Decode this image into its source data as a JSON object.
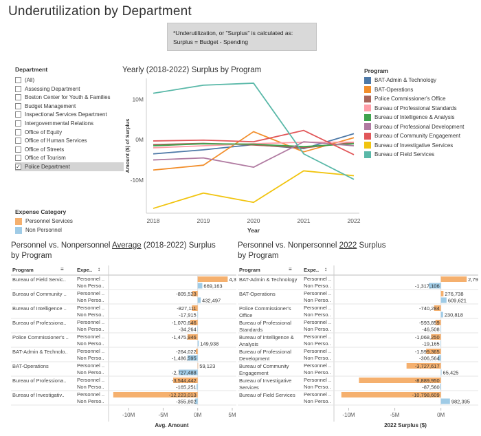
{
  "title": "Underutilization by Department",
  "note": {
    "line1": "*Underutilization, or \"Surplus\" is calculated as:",
    "line2": "Surplus = Budget - Spending"
  },
  "filter": {
    "header": "Department",
    "items": [
      {
        "label": "(All)",
        "checked": false
      },
      {
        "label": "Assessing Department",
        "checked": false
      },
      {
        "label": "Boston Center for Youth & Families",
        "checked": false
      },
      {
        "label": "Budget Management",
        "checked": false
      },
      {
        "label": "Inspectional Services Department",
        "checked": false
      },
      {
        "label": "Intergovernmental Relations",
        "checked": false
      },
      {
        "label": "Office of Equity",
        "checked": false
      },
      {
        "label": "Office of Human Services",
        "checked": false
      },
      {
        "label": "Office of Streets",
        "checked": false
      },
      {
        "label": "Office of Tourism",
        "checked": false
      },
      {
        "label": "Police Department",
        "checked": true
      }
    ]
  },
  "expense_legend": {
    "header": "Expense Category",
    "items": [
      {
        "label": "Personnel Services",
        "color": "#f5b06e"
      },
      {
        "label": "Non Personnel",
        "color": "#9fcbe6"
      }
    ]
  },
  "program_legend": {
    "header": "Program",
    "items": [
      {
        "label": "BAT-Admin & Technology",
        "color": "#4e79a7"
      },
      {
        "label": "BAT-Operations",
        "color": "#f28e2b"
      },
      {
        "label": "Police Commissioner's Office",
        "color": "#a8645a"
      },
      {
        "label": "Bureau of Professional Standards",
        "color": "#ff9da7"
      },
      {
        "label": "Bureau of Intelligence & Analysis",
        "color": "#3fa34d"
      },
      {
        "label": "Bureau of Professional Development",
        "color": "#b07aa1"
      },
      {
        "label": "Bureau of Community Engagement",
        "color": "#e15759"
      },
      {
        "label": "Bureau of Investigative Services",
        "color": "#f1c40f"
      },
      {
        "label": "Bureau of Field Services",
        "color": "#59b8a8"
      }
    ]
  },
  "line_chart": {
    "title": "Yearly (2018-2022) Surplus by Program",
    "ylabel": "Amount ($) of Surplus",
    "xlabel": "Year"
  },
  "avg_chart": {
    "title_pre": "Personnel vs. Nonpersonnel ",
    "title_underline": "Average",
    "title_post": " (2018-2022) Surplus",
    "title_line2": "by Program",
    "col_program": "Program",
    "col_expense": "Expe..",
    "xlabel": "Avg. Amount"
  },
  "y2022_chart": {
    "title_pre": "Personnel vs. Nonpersonnel ",
    "title_underline": "2022",
    "title_post": " Surplus",
    "title_line2": "by Program",
    "col_program": "Program",
    "col_expense": "Expe..",
    "xlabel": "2022 Surplus ($)"
  },
  "chart_data": [
    {
      "type": "line",
      "title": "Yearly (2018-2022) Surplus by Program",
      "xlabel": "Year",
      "ylabel": "Amount ($) of Surplus",
      "x": [
        2018,
        2019,
        2020,
        2021,
        2022
      ],
      "ylim": [
        -17500000,
        14500000
      ],
      "yticks": [
        {
          "v": 10000000,
          "label": "10M"
        },
        {
          "v": 0,
          "label": "0M"
        },
        {
          "v": -10000000,
          "label": "-10M"
        }
      ],
      "grid": false,
      "legend": "right",
      "series": [
        {
          "name": "BAT-Admin & Technology",
          "color": "#4e79a7",
          "values": [
            -3500000,
            -2500000,
            -1200000,
            -2200000,
            1500000
          ]
        },
        {
          "name": "BAT-Operations",
          "color": "#f28e2b",
          "values": [
            -7500000,
            -6300000,
            2000000,
            -3000000,
            500000
          ]
        },
        {
          "name": "Police Commissioner's Office",
          "color": "#a8645a",
          "values": [
            -1200000,
            -900000,
            -1300000,
            -2000000,
            -700000
          ]
        },
        {
          "name": "Bureau of Professional Standards",
          "color": "#ff9da7",
          "values": [
            -2000000,
            -1500000,
            -1000000,
            -600000,
            -600000
          ]
        },
        {
          "name": "Bureau of Intelligence & Analysis",
          "color": "#3fa34d",
          "values": [
            -1500000,
            -1000000,
            -1100000,
            -1700000,
            -1000000
          ]
        },
        {
          "name": "Bureau of Professional Development",
          "color": "#b07aa1",
          "values": [
            -5000000,
            -4500000,
            -6800000,
            -500000,
            -1500000
          ]
        },
        {
          "name": "Bureau of Community Engagement",
          "color": "#e15759",
          "values": [
            -300000,
            -100000,
            -500000,
            2300000,
            -3700000
          ]
        },
        {
          "name": "Bureau of Investigative Services",
          "color": "#f1c40f",
          "values": [
            -17000000,
            -13200000,
            -15500000,
            -7700000,
            -8900000
          ]
        },
        {
          "name": "Bureau of Field Services",
          "color": "#59b8a8",
          "values": [
            11500000,
            13500000,
            14000000,
            -3500000,
            -9800000
          ]
        }
      ]
    },
    {
      "type": "bar",
      "title": "Personnel vs. Nonpersonnel Average (2018-2022) Surplus by Program",
      "xlabel": "Avg. Amount",
      "xlim": [
        -12900000,
        5400000
      ],
      "xticks": [
        {
          "v": -10000000,
          "label": "-10M"
        },
        {
          "v": -5000000,
          "label": "-5M"
        },
        {
          "v": 0,
          "label": "0M"
        },
        {
          "v": 5000000,
          "label": "5M"
        }
      ],
      "rows": [
        {
          "program": "Bureau of Field Servic..",
          "personnel": 4342652,
          "personnel_label": "4,342,652",
          "nonpersonnel": 669163,
          "nonpersonnel_label": "669,163"
        },
        {
          "program": "Bureau of Community ..",
          "personnel": -805523,
          "personnel_label": "-805,523",
          "nonpersonnel": 432497,
          "nonpersonnel_label": "432,497"
        },
        {
          "program": "Bureau of Intelligence ..",
          "personnel": -827111,
          "personnel_label": "-827,111",
          "nonpersonnel": -17915,
          "nonpersonnel_label": "-17,915"
        },
        {
          "program": "Bureau of Professiona..",
          "personnel": -1070646,
          "personnel_label": "-1,070,646",
          "nonpersonnel": -34264,
          "nonpersonnel_label": "-34,264"
        },
        {
          "program": "Police Commissioner's ..",
          "personnel": -1475946,
          "personnel_label": "-1,475,946",
          "nonpersonnel": 149938,
          "nonpersonnel_label": "149,938"
        },
        {
          "program": "BAT-Admin & Technolo..",
          "personnel": -264022,
          "personnel_label": "-264,022",
          "nonpersonnel": -1486595,
          "nonpersonnel_label": "-1,486,595"
        },
        {
          "program": "BAT-Operations",
          "personnel": 59123,
          "personnel_label": "59,123",
          "nonpersonnel": -2727488,
          "nonpersonnel_label": "-2,727,488"
        },
        {
          "program": "Bureau of Professiona..",
          "personnel": -3544442,
          "personnel_label": "-3,544,442",
          "nonpersonnel": -165251,
          "nonpersonnel_label": "-165,251"
        },
        {
          "program": "Bureau of Investigativ..",
          "personnel": -12223013,
          "personnel_label": "-12,223,013",
          "nonpersonnel": -355802,
          "nonpersonnel_label": "-355,802"
        }
      ],
      "sub_labels": [
        "Personnel ..",
        "Non Perso.."
      ]
    },
    {
      "type": "bar",
      "title": "Personnel vs. Nonpersonnel 2022 Surplus by Program",
      "xlabel": "2022 Surplus ($)",
      "xlim": [
        -11600000,
        3900000
      ],
      "xticks": [
        {
          "v": -10000000,
          "label": "-10M"
        },
        {
          "v": -5000000,
          "label": "-5M"
        },
        {
          "v": 0,
          "label": "0M"
        }
      ],
      "rows": [
        {
          "program": "BAT-Admin & Technology",
          "personnel": 2795104,
          "personnel_label": "2,795,104",
          "nonpersonnel": -1317106,
          "nonpersonnel_label": "-1,317,106"
        },
        {
          "program": "BAT-Operations",
          "personnel": 276738,
          "personnel_label": "276,738",
          "nonpersonnel": 609621,
          "nonpersonnel_label": "609,621"
        },
        {
          "program": "Police Commissioner's\nOffice",
          "personnel": -740284,
          "personnel_label": "-740,284",
          "nonpersonnel": 230818,
          "nonpersonnel_label": "230,818"
        },
        {
          "program": "Bureau of Professional\nStandards",
          "personnel": -593859,
          "personnel_label": "-593,859",
          "nonpersonnel": -46508,
          "nonpersonnel_label": "-46,508"
        },
        {
          "program": "Bureau of Intelligence &\nAnalysis",
          "personnel": -1068250,
          "personnel_label": "-1,068,250",
          "nonpersonnel": -19165,
          "nonpersonnel_label": "-19,165"
        },
        {
          "program": "Bureau of Professional\nDevelopment",
          "personnel": -1599365,
          "personnel_label": "-1,599,365",
          "nonpersonnel": -306564,
          "nonpersonnel_label": "-306,564"
        },
        {
          "program": "Bureau of Community\nEngagement",
          "personnel": -3727617,
          "personnel_label": "-3,727,617",
          "nonpersonnel": 65425,
          "nonpersonnel_label": "65,425"
        },
        {
          "program": "Bureau of Investigative\nServices",
          "personnel": -8889950,
          "personnel_label": "-8,889,950",
          "nonpersonnel": -87560,
          "nonpersonnel_label": "-87,560"
        },
        {
          "program": "Bureau of Field Services",
          "personnel": -10798609,
          "personnel_label": "-10,798,609",
          "nonpersonnel": 982395,
          "nonpersonnel_label": "982,395"
        }
      ],
      "sub_labels": [
        "Personnel ..",
        "Non Perso.."
      ]
    }
  ]
}
